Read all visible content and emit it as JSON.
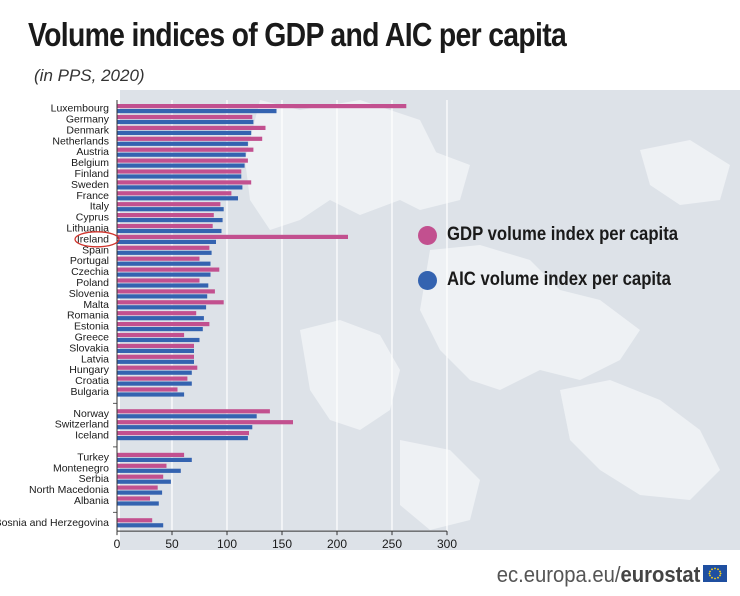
{
  "title": "Volume indices of  GDP and AIC per capita",
  "subtitle": "(in PPS, 2020)",
  "legend": [
    {
      "label": "GDP volume index per capita",
      "color": "#c2508f"
    },
    {
      "label": "AIC volume index per capita",
      "color": "#3463b0"
    }
  ],
  "footer": {
    "domain": "ec.europa.eu/",
    "brand": "eurostat"
  },
  "chart_data": {
    "type": "bar",
    "orientation": "horizontal",
    "title": "Volume indices of  GDP and AIC per capita",
    "subtitle": "(in PPS, 2020)",
    "categories": [
      "Luxembourg",
      "Germany",
      "Denmark",
      "Netherlands",
      "Austria",
      "Belgium",
      "Finland",
      "Sweden",
      "France",
      "Italy",
      "Cyprus",
      "Lithuania",
      "Ireland",
      "Spain",
      "Portugal",
      "Czechia",
      "Poland",
      "Slovenia",
      "Malta",
      "Romania",
      "Estonia",
      "Greece",
      "Slovakia",
      "Latvia",
      "Hungary",
      "Croatia",
      "Bulgaria",
      "",
      "Norway",
      "Switzerland",
      "Iceland",
      "",
      "Turkey",
      "Montenegro",
      "Serbia",
      "North Macedonia",
      "Albania",
      "",
      "Bosnia and Herzegovina"
    ],
    "highlighted": "Ireland",
    "series": [
      {
        "name": "GDP volume index per capita",
        "color": "#c2508f",
        "values": [
          263,
          123,
          135,
          132,
          124,
          119,
          113,
          122,
          104,
          94,
          88,
          87,
          210,
          84,
          75,
          93,
          75,
          89,
          97,
          72,
          84,
          61,
          70,
          70,
          73,
          64,
          55,
          null,
          139,
          160,
          120,
          null,
          61,
          45,
          42,
          37,
          30,
          null,
          32
        ]
      },
      {
        "name": "AIC volume index per capita",
        "color": "#3463b0",
        "values": [
          145,
          124,
          122,
          119,
          117,
          116,
          113,
          114,
          110,
          97,
          96,
          95,
          90,
          86,
          85,
          85,
          83,
          82,
          81,
          79,
          78,
          75,
          70,
          70,
          68,
          68,
          61,
          null,
          127,
          123,
          119,
          null,
          68,
          58,
          49,
          41,
          38,
          null,
          42
        ]
      }
    ],
    "xlim": [
      0,
      300
    ],
    "xticks": [
      0,
      50,
      100,
      150,
      200,
      250,
      300
    ]
  }
}
